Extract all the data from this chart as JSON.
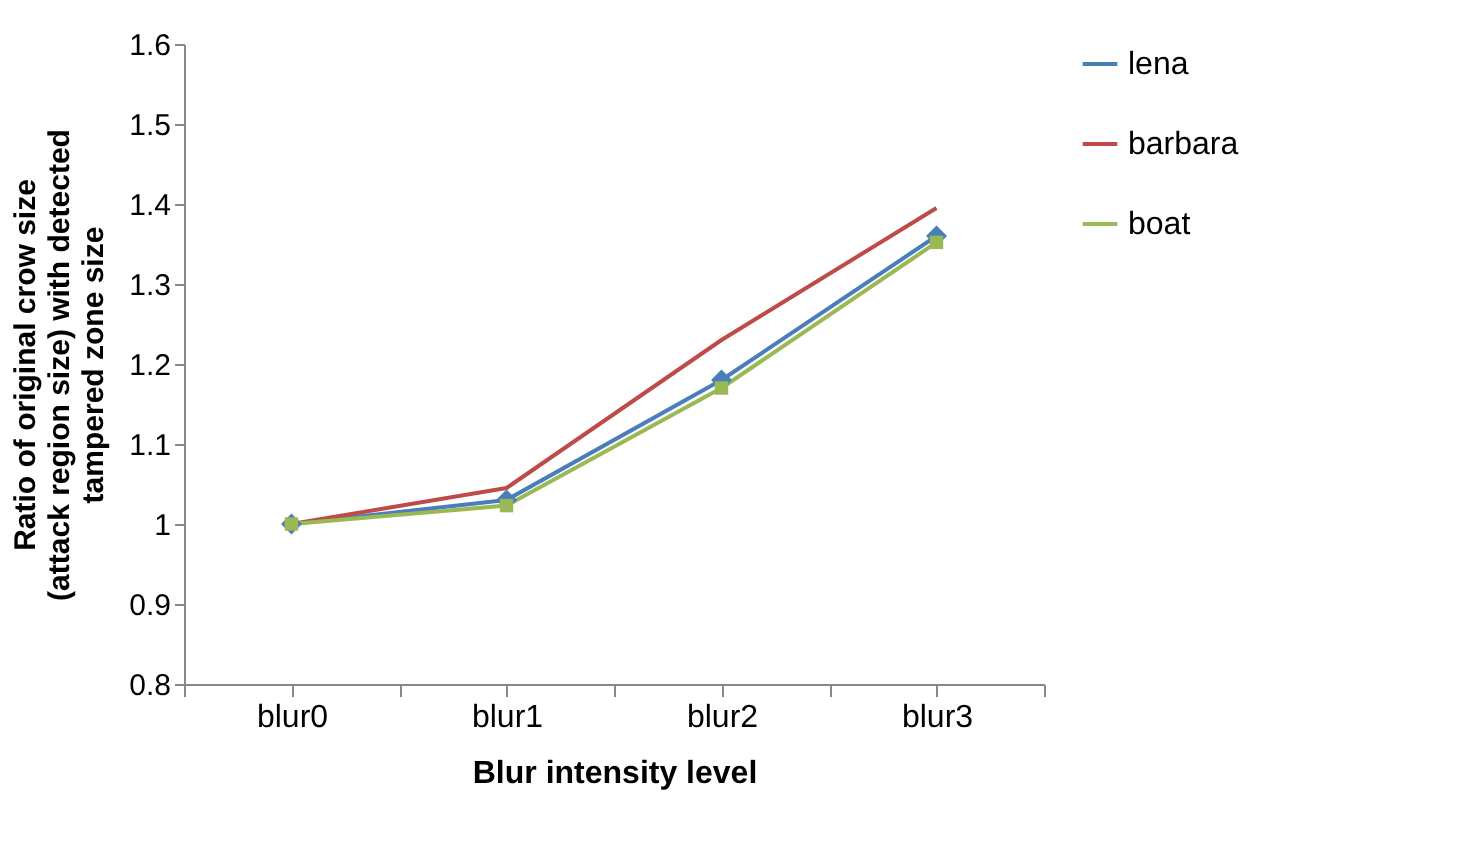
{
  "chart_data": {
    "type": "line",
    "xlabel": "Blur intensity level",
    "ylabel": "Ratio of original crow size (attack region size) with detected tampered zone size",
    "categories": [
      "blur0",
      "blur1",
      "blur2",
      "blur3"
    ],
    "series": [
      {
        "name": "lena",
        "color": "#4a7ebb",
        "values": [
          1.0,
          1.03,
          1.18,
          1.36
        ],
        "marker": "diamond"
      },
      {
        "name": "barbara",
        "color": "#be4b48",
        "values": [
          1.0,
          1.045,
          1.23,
          1.395
        ],
        "marker": "none"
      },
      {
        "name": "boat",
        "color": "#98b954",
        "values": [
          1.0,
          1.023,
          1.17,
          1.352
        ],
        "marker": "square"
      }
    ],
    "ylim": [
      0.8,
      1.6
    ],
    "yticks": [
      0.8,
      0.9,
      1,
      1.1,
      1.2,
      1.3,
      1.4,
      1.5,
      1.6
    ],
    "grid": false,
    "legend": "right",
    "line_style": "solid"
  }
}
